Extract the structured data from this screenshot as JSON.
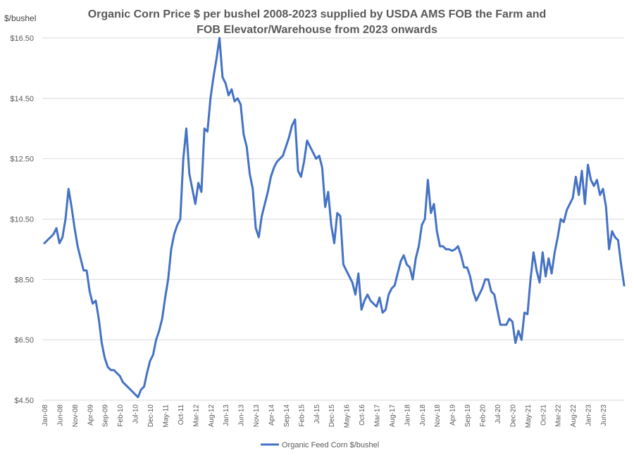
{
  "chart_data": {
    "type": "line",
    "title": "Organic Corn Price $ per bushel 2008-2023 supplied by USDA AMS  FOB the Farm and FOB Elevator/Warehouse from 2023 onwards",
    "title_lines": [
      "Organic Corn Price $ per bushel 2008-2023 supplied by USDA AMS  FOB the Farm and",
      "FOB Elevator/Warehouse from 2023 onwards"
    ],
    "ylabel": "$/bushel",
    "xlabel": "",
    "ylim": [
      4.5,
      16.5
    ],
    "yticks": [
      "$4.50",
      "$6.50",
      "$8.50",
      "$10.50",
      "$12.50",
      "$14.50",
      "$16.50"
    ],
    "ytick_values": [
      4.5,
      6.5,
      8.5,
      10.5,
      12.5,
      14.5,
      16.5
    ],
    "grid": true,
    "legend_position": "bottom",
    "series_color": "#4472C4",
    "x_start": "Jan-08",
    "x_tick_labels": [
      "Jan-08",
      "Jun-08",
      "Nov-08",
      "Apr-09",
      "Sep-09",
      "Feb-10",
      "Jul-10",
      "Dec-10",
      "May-11",
      "Oct-11",
      "Mar-12",
      "Aug-12",
      "Jan-13",
      "Jun-13",
      "Nov-13",
      "Apr-14",
      "Sep-14",
      "Feb-15",
      "Jul-15",
      "Dec-15",
      "May-16",
      "Oct-16",
      "Mar-17",
      "Aug-17",
      "Jan-18",
      "Jun-18",
      "Nov-18",
      "Apr-19",
      "Sep-19",
      "Feb-20",
      "Jul-20",
      "Dec-20",
      "May-21",
      "Oct-21",
      "Mar-22",
      "Aug-22",
      "Jan-23",
      "Jun-23"
    ],
    "series": [
      {
        "name": "Organic Feed Corn $/bushel",
        "values": [
          9.7,
          9.8,
          9.9,
          10.0,
          10.2,
          9.7,
          9.9,
          10.5,
          11.5,
          10.9,
          10.2,
          9.6,
          9.2,
          8.8,
          8.8,
          8.1,
          7.7,
          7.8,
          7.2,
          6.4,
          5.9,
          5.6,
          5.5,
          5.5,
          5.4,
          5.3,
          5.1,
          5.0,
          4.9,
          4.8,
          4.7,
          4.6,
          4.85,
          4.95,
          5.4,
          5.8,
          6.0,
          6.5,
          6.8,
          7.2,
          7.9,
          8.5,
          9.5,
          10.0,
          10.3,
          10.5,
          12.5,
          13.5,
          12.0,
          11.5,
          11.0,
          11.7,
          11.4,
          13.5,
          13.4,
          14.5,
          15.2,
          15.8,
          16.5,
          15.2,
          15.0,
          14.6,
          14.8,
          14.4,
          14.5,
          14.3,
          13.3,
          12.9,
          12.0,
          11.5,
          10.2,
          9.9,
          10.6,
          11.0,
          11.4,
          11.9,
          12.2,
          12.4,
          12.5,
          12.6,
          12.9,
          13.2,
          13.6,
          13.8,
          12.1,
          11.9,
          12.4,
          13.1,
          12.9,
          12.7,
          12.5,
          12.6,
          12.2,
          10.9,
          11.4,
          10.3,
          9.7,
          10.7,
          10.6,
          9.0,
          8.8,
          8.6,
          8.4,
          8.0,
          8.7,
          7.5,
          7.8,
          8.0,
          7.8,
          7.7,
          7.6,
          7.9,
          7.4,
          7.5,
          8.0,
          8.2,
          8.3,
          8.7,
          9.1,
          9.3,
          9.0,
          8.9,
          8.5,
          9.2,
          9.6,
          10.3,
          10.5,
          11.8,
          10.7,
          11.0,
          10.1,
          9.6,
          9.6,
          9.5,
          9.5,
          9.45,
          9.5,
          9.6,
          9.3,
          8.9,
          8.9,
          8.6,
          8.1,
          7.8,
          8.0,
          8.2,
          8.5,
          8.5,
          8.1,
          8.0,
          7.5,
          7.0,
          7.0,
          7.0,
          7.2,
          7.1,
          6.4,
          6.8,
          6.5,
          7.4,
          7.35,
          8.5,
          9.4,
          8.8,
          8.4,
          9.4,
          8.6,
          9.2,
          8.7,
          9.4,
          9.9,
          10.5,
          10.4,
          10.8,
          11.0,
          11.2,
          11.9,
          11.3,
          12.1,
          11.0,
          12.3,
          11.8,
          11.6,
          11.8,
          11.3,
          11.5,
          10.9,
          9.5,
          10.1,
          9.9,
          9.8,
          9.0,
          8.3
        ]
      }
    ]
  }
}
